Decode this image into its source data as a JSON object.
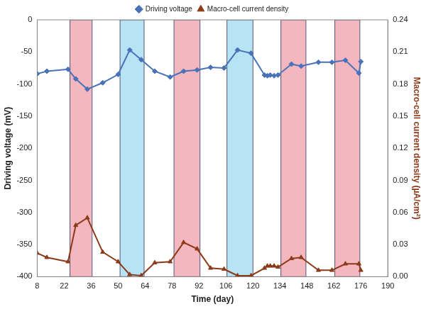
{
  "chart_data": {
    "type": "line",
    "x_label": "Time (day)",
    "y_label": "Driving voltage (mV)",
    "y2_label": "Macro-cell current density (µA/cm²)",
    "x": [
      8,
      13,
      24,
      28,
      34,
      42,
      50,
      56,
      62,
      69,
      77,
      84,
      91,
      98,
      105,
      112,
      119,
      126,
      127.5,
      129,
      131,
      133,
      140,
      145,
      154,
      161,
      168,
      175,
      176
    ],
    "series": [
      {
        "name": "Driving voltage",
        "color": "#4a72b8",
        "marker": "diamond",
        "line_style": "solid",
        "values": [
          -84,
          -80,
          -77,
          -92,
          -108,
          -98,
          -85,
          -47,
          -62,
          -80,
          -89,
          -80,
          -78,
          -74,
          -75,
          -47,
          -52,
          -86,
          -87,
          -86,
          -87,
          -86,
          -69,
          -72,
          -66,
          -66,
          -63,
          -83,
          -65
        ]
      },
      {
        "name": "Macro-cell current density",
        "color": "#8b3a1a",
        "marker": "triangle",
        "line_style": "solid",
        "axis": "y2",
        "values": [
          0.022,
          0.018,
          0.014,
          0.048,
          0.055,
          0.023,
          0.014,
          0.002,
          0.001,
          0.013,
          0.014,
          0.032,
          0.026,
          0.008,
          0.007,
          0.001,
          0.001,
          0.008,
          0.01,
          0.01,
          0.01,
          0.009,
          0.017,
          0.018,
          0.006,
          0.006,
          0.012,
          0.012,
          0.006
        ]
      }
    ],
    "xlim": [
      8,
      190
    ],
    "xticks": [
      8,
      22,
      36,
      50,
      64,
      78,
      92,
      106,
      120,
      134,
      148,
      162,
      176,
      190
    ],
    "ylim": [
      -400,
      0
    ],
    "yticks": [
      -400,
      -350,
      -300,
      -250,
      -200,
      -150,
      -100,
      -50,
      0
    ],
    "y2lim": [
      0,
      0.24
    ],
    "y2ticks": [
      {
        "value": 0,
        "label": "0.00"
      },
      {
        "value": 0.03,
        "label": "0.03"
      },
      {
        "value": 0.06,
        "label": "0.06"
      },
      {
        "value": 0.09,
        "label": "0.09"
      },
      {
        "value": 0.12,
        "label": "0.12"
      },
      {
        "value": 0.15,
        "label": "0.15"
      },
      {
        "value": 0.18,
        "label": "0.18"
      },
      {
        "value": 0.21,
        "label": "0.21"
      },
      {
        "value": 0.24,
        "label": "0.24"
      }
    ],
    "bands": [
      {
        "from": 25,
        "to": 36.5,
        "color": "#f4b6bf"
      },
      {
        "from": 51,
        "to": 63.5,
        "color": "#b7e3f4"
      },
      {
        "from": 79,
        "to": 92.5,
        "color": "#f4b6bf"
      },
      {
        "from": 106.5,
        "to": 120,
        "color": "#b7e3f4"
      },
      {
        "from": 134.5,
        "to": 147.5,
        "color": "#f4b6bf"
      },
      {
        "from": 162.5,
        "to": 175.5,
        "color": "#f4b6bf"
      }
    ],
    "grid": false,
    "legend": "top"
  }
}
